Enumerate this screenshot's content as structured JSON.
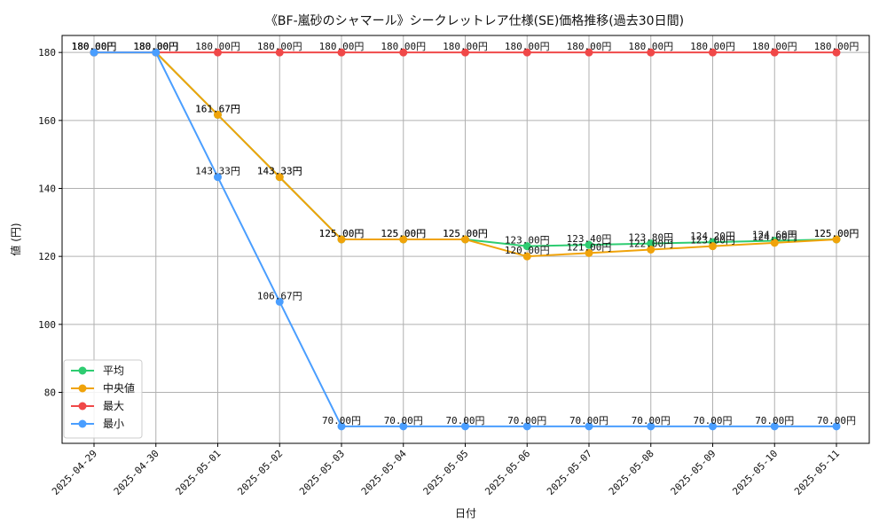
{
  "chart_data": {
    "type": "line",
    "title": "《BF-嵐砂のシャマール》シークレットレア仕様(SE)価格推移(過去30日間)",
    "xlabel": "日付",
    "ylabel": "値 (円)",
    "x": [
      "2025-04-29",
      "2025-04-30",
      "2025-05-01",
      "2025-05-02",
      "2025-05-03",
      "2025-05-04",
      "2025-05-05",
      "2025-05-06",
      "2025-05-07",
      "2025-05-08",
      "2025-05-09",
      "2025-05-10",
      "2025-05-11"
    ],
    "ylim": [
      65,
      185
    ],
    "yticks": [
      80,
      100,
      120,
      140,
      160,
      180
    ],
    "grid": true,
    "legend_position": "lower-left",
    "value_suffix": "円",
    "series": [
      {
        "name": "平均",
        "color": "#2ecc71",
        "values": [
          180.0,
          180.0,
          161.67,
          143.33,
          125.0,
          125.0,
          125.0,
          123.0,
          123.4,
          123.8,
          124.2,
          124.6,
          125.0
        ]
      },
      {
        "name": "中央値",
        "color": "#f0a30a",
        "values": [
          180.0,
          180.0,
          161.67,
          143.33,
          125.0,
          125.0,
          125.0,
          120.0,
          121.0,
          122.0,
          123.0,
          124.0,
          125.0
        ]
      },
      {
        "name": "最大",
        "color": "#f04848",
        "values": [
          180.0,
          180.0,
          180.0,
          180.0,
          180.0,
          180.0,
          180.0,
          180.0,
          180.0,
          180.0,
          180.0,
          180.0,
          180.0
        ]
      },
      {
        "name": "最小",
        "color": "#4a9eff",
        "values": [
          180.0,
          180.0,
          143.33,
          106.67,
          70.0,
          70.0,
          70.0,
          70.0,
          70.0,
          70.0,
          70.0,
          70.0,
          70.0
        ]
      }
    ]
  }
}
